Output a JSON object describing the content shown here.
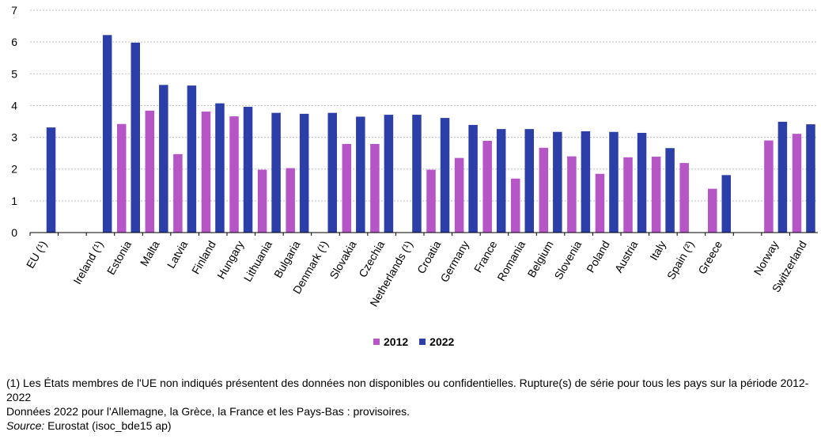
{
  "chart_data": {
    "type": "bar",
    "categories": [
      "EU (¹)",
      "",
      "Ireland (¹)",
      "Estonia",
      "Malta",
      "Latvia",
      "Finland",
      "Hungary",
      "Lithuania",
      "Bulgaria",
      "Denmark (¹)",
      "Slovakia",
      "Czechia",
      "Netherlands (¹)",
      "Croatia",
      "Germany",
      "France",
      "Romania",
      "Belgium",
      "Slovenia",
      "Poland",
      "Austria",
      "Italy",
      "Spain (²)",
      "Greece",
      "",
      "Norway",
      "Switzerland"
    ],
    "series": [
      {
        "name": "2012",
        "color": "#b656c6",
        "values": [
          null,
          null,
          null,
          3.42,
          3.84,
          2.47,
          3.81,
          3.66,
          1.98,
          2.03,
          null,
          2.79,
          2.79,
          null,
          1.98,
          2.35,
          2.89,
          1.7,
          2.67,
          2.4,
          1.85,
          2.37,
          2.39,
          2.19,
          1.38,
          null,
          2.9,
          3.11
        ]
      },
      {
        "name": "2022",
        "color": "#2c3ea8",
        "values": [
          3.31,
          null,
          6.22,
          5.98,
          4.65,
          4.63,
          4.07,
          3.96,
          3.77,
          3.74,
          3.77,
          3.65,
          3.71,
          3.71,
          3.61,
          3.39,
          3.26,
          3.26,
          3.17,
          3.19,
          3.17,
          3.14,
          2.66,
          null,
          1.81,
          null,
          3.49,
          3.41
        ]
      }
    ],
    "ylim": [
      0,
      7
    ],
    "yticks": [
      "0",
      "1",
      "2",
      "3",
      "4",
      "5",
      "6",
      "7"
    ],
    "grid": true,
    "legend": "bottom-center",
    "title": "",
    "xlabel": "",
    "ylabel": ""
  },
  "legend": [
    {
      "label": "2012",
      "color": "#b656c6"
    },
    {
      "label": "2022",
      "color": "#2c3ea8"
    }
  ],
  "notes": {
    "line1": "(1) Les États membres de l'UE non indiqués présentent des données non disponibles ou confidentielles. Rupture(s) de série pour tous les pays sur la période 2012-2022",
    "line2": "Données 2022 pour l'Allemagne, la Grèce, la France et les Pays-Bas : provisoires.",
    "source_label": "Source:",
    "source_text": " Eurostat (isoc_bde15 ap)"
  }
}
